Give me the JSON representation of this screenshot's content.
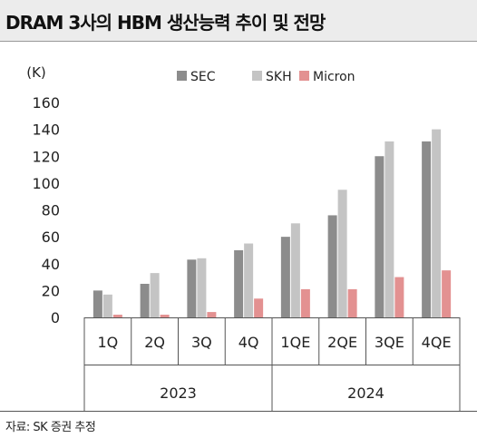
{
  "title": "DRAM 3사의 HBM 생산능력 추이 및 전망",
  "source": "자료: SK 증권 추정",
  "chart_data": {
    "type": "bar",
    "unit_label": "(K)",
    "categories": [
      "1Q",
      "2Q",
      "3Q",
      "4Q",
      "1QE",
      "2QE",
      "3QE",
      "4QE"
    ],
    "year_groups": [
      {
        "label": "2023",
        "span": 4
      },
      {
        "label": "2024",
        "span": 4
      }
    ],
    "series": [
      {
        "name": "SEC",
        "color": "#8c8c8c",
        "values": [
          20,
          25,
          43,
          50,
          60,
          76,
          120,
          131
        ]
      },
      {
        "name": "SKH",
        "color": "#c4c4c4",
        "values": [
          17,
          33,
          44,
          55,
          70,
          95,
          131,
          140
        ]
      },
      {
        "name": "Micron",
        "color": "#e39191",
        "values": [
          2,
          2,
          4,
          14,
          21,
          21,
          30,
          35
        ]
      }
    ],
    "ylim": [
      0,
      160
    ],
    "yticks": [
      0,
      20,
      40,
      60,
      80,
      100,
      120,
      140,
      160
    ],
    "grid": false,
    "legend_position": "top"
  }
}
